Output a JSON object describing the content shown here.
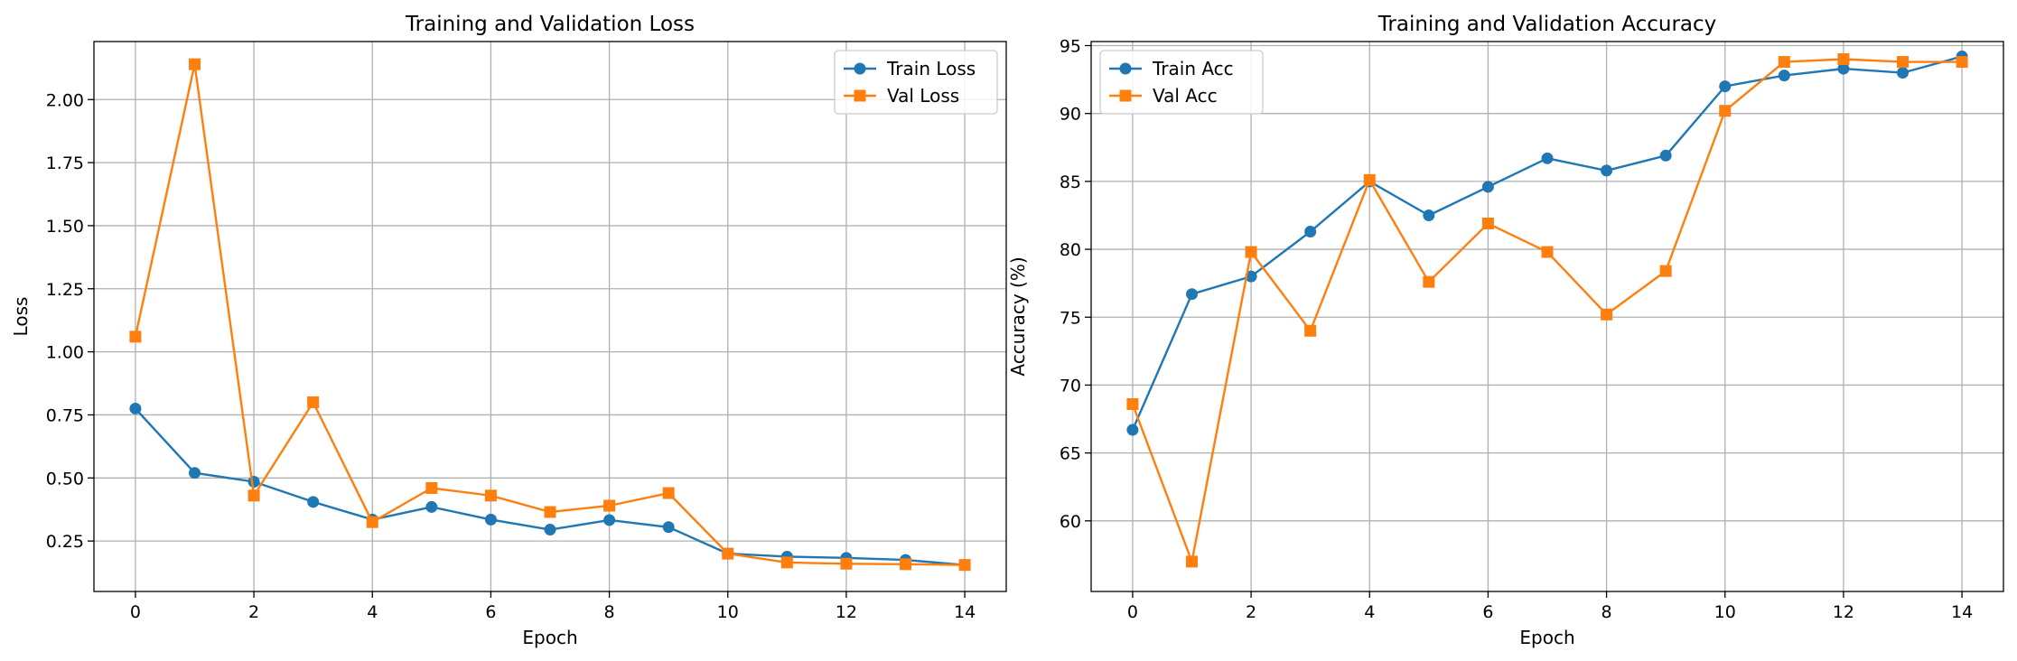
{
  "chart_data": [
    {
      "type": "line",
      "title": "Training and Validation Loss",
      "xlabel": "Epoch",
      "ylabel": "Loss",
      "xlim": [
        -0.7,
        14.7
      ],
      "ylim": [
        0.05,
        2.23
      ],
      "xticks": [
        0,
        2,
        4,
        6,
        8,
        10,
        12,
        14
      ],
      "xtick_labels": [
        "0",
        "2",
        "4",
        "6",
        "8",
        "10",
        "12",
        "14"
      ],
      "yticks": [
        0.25,
        0.5,
        0.75,
        1.0,
        1.25,
        1.5,
        1.75,
        2.0
      ],
      "ytick_labels": [
        "0.25",
        "0.50",
        "0.75",
        "1.00",
        "1.25",
        "1.50",
        "1.75",
        "2.00"
      ],
      "grid": true,
      "legend_position": "top-right",
      "x": [
        0,
        1,
        2,
        3,
        4,
        5,
        6,
        7,
        8,
        9,
        10,
        11,
        12,
        13,
        14
      ],
      "series": [
        {
          "name": "Train Loss",
          "marker": "circle",
          "color": "#1f77b4",
          "values": [
            0.775,
            0.52,
            0.485,
            0.405,
            0.335,
            0.385,
            0.335,
            0.295,
            0.333,
            0.305,
            0.2,
            0.188,
            0.183,
            0.175,
            0.155
          ]
        },
        {
          "name": "Val Loss",
          "marker": "square",
          "color": "#ff7f0e",
          "values": [
            1.06,
            2.14,
            0.43,
            0.8,
            0.325,
            0.46,
            0.43,
            0.365,
            0.39,
            0.44,
            0.2,
            0.165,
            0.16,
            0.158,
            0.155
          ]
        }
      ]
    },
    {
      "type": "line",
      "title": "Training and Validation Accuracy",
      "xlabel": "Epoch",
      "ylabel": "Accuracy (%)",
      "xlim": [
        -0.7,
        14.7
      ],
      "ylim": [
        54.8,
        95.3
      ],
      "xticks": [
        0,
        2,
        4,
        6,
        8,
        10,
        12,
        14
      ],
      "xtick_labels": [
        "0",
        "2",
        "4",
        "6",
        "8",
        "10",
        "12",
        "14"
      ],
      "yticks": [
        60,
        65,
        70,
        75,
        80,
        85,
        90,
        95
      ],
      "ytick_labels": [
        "60",
        "65",
        "70",
        "75",
        "80",
        "85",
        "90",
        "95"
      ],
      "grid": true,
      "legend_position": "top-left",
      "x": [
        0,
        1,
        2,
        3,
        4,
        5,
        6,
        7,
        8,
        9,
        10,
        11,
        12,
        13,
        14
      ],
      "series": [
        {
          "name": "Train Acc",
          "marker": "circle",
          "color": "#1f77b4",
          "values": [
            66.7,
            76.7,
            78.0,
            81.3,
            85.0,
            82.5,
            84.6,
            86.7,
            85.8,
            86.9,
            92.0,
            92.8,
            93.3,
            93.0,
            94.2
          ]
        },
        {
          "name": "Val Acc",
          "marker": "square",
          "color": "#ff7f0e",
          "values": [
            68.6,
            57.0,
            79.8,
            74.0,
            85.1,
            77.6,
            81.9,
            79.8,
            75.2,
            78.4,
            90.2,
            93.8,
            94.0,
            93.8,
            93.8
          ]
        }
      ]
    }
  ]
}
